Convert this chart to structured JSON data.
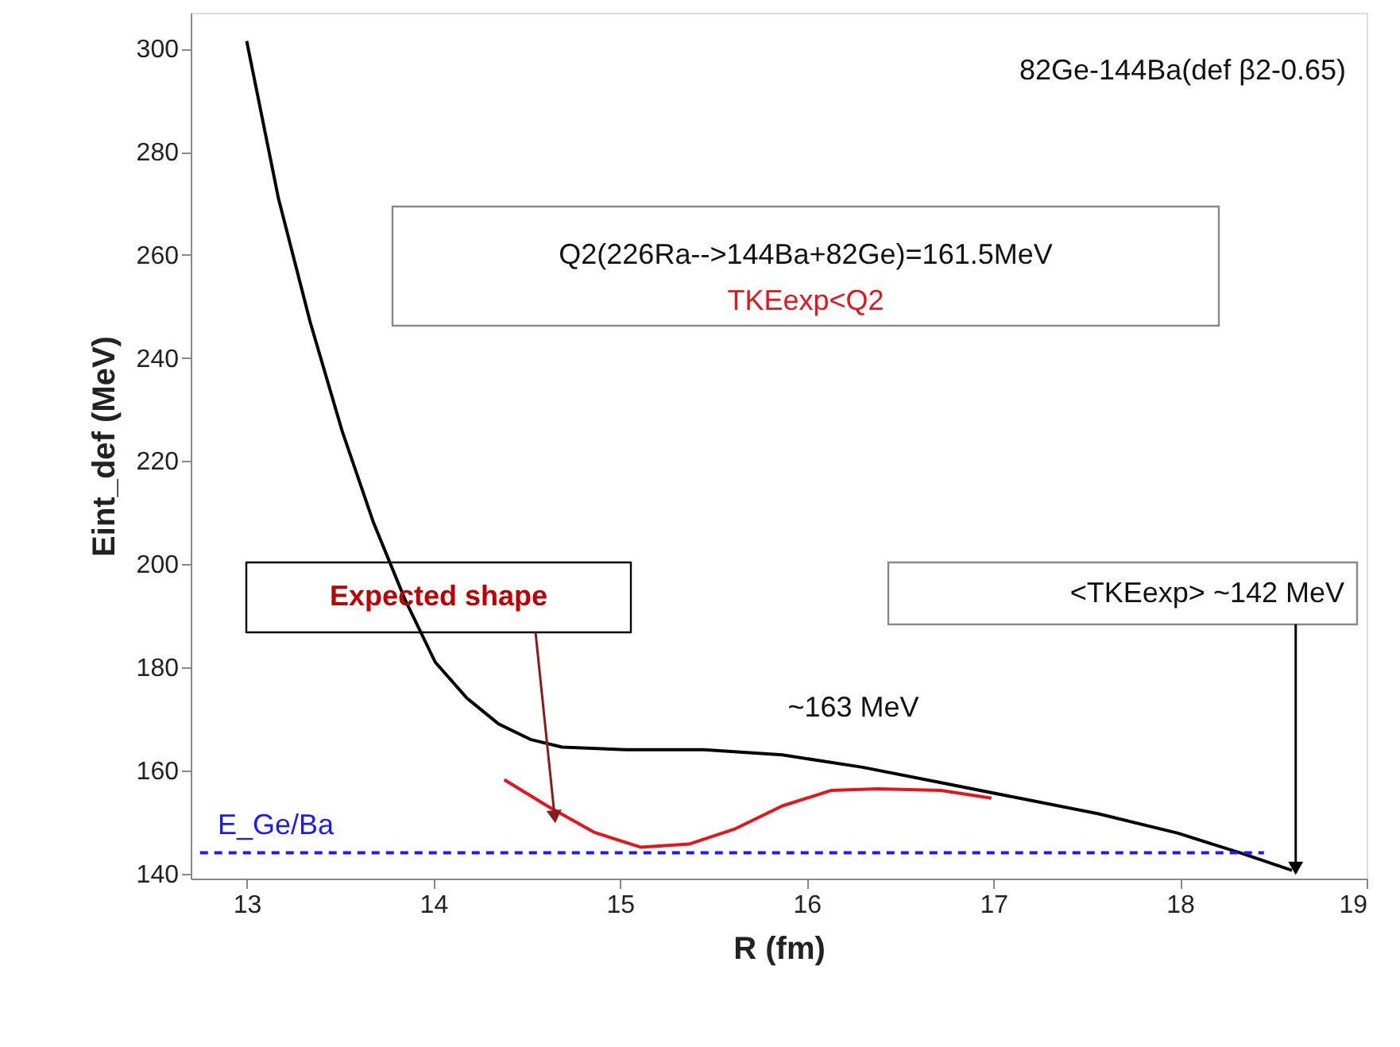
{
  "chart_data": {
    "type": "line",
    "xlabel": "R (fm)",
    "ylabel": "Eint_def (MeV)",
    "xlim": [
      12.7,
      19
    ],
    "ylim": [
      139,
      307
    ],
    "xticks": [
      13,
      14,
      15,
      16,
      17,
      18,
      19
    ],
    "yticks": [
      140,
      160,
      180,
      200,
      220,
      240,
      260,
      280,
      300
    ],
    "grid": false,
    "marker": "none",
    "series": [
      {
        "color": "#000000",
        "line_style": "solid",
        "x": [
          13,
          13.17,
          13.34,
          13.51,
          13.68,
          13.85,
          14.01,
          14.18,
          14.35,
          14.52,
          14.69,
          15.03,
          15.45,
          15.87,
          16.3,
          16.72,
          17.14,
          17.56,
          17.99,
          18.33,
          18.6
        ],
        "values": [
          301.5,
          271,
          247,
          226,
          208,
          193,
          181,
          174,
          169,
          166,
          164.5,
          164,
          164,
          163,
          160.6,
          157.6,
          154.6,
          151.6,
          147.8,
          143.9,
          140.6
        ]
      },
      {
        "color": "#e8141c",
        "line_style": "solid",
        "x": [
          14.38,
          14.61,
          14.86,
          15.11,
          15.37,
          15.62,
          15.87,
          16.13,
          16.38,
          16.72,
          16.99
        ],
        "values": [
          158.2,
          153.1,
          148,
          145.1,
          145.7,
          148.7,
          153.1,
          156.1,
          156.4,
          156.1,
          154.6
        ]
      },
      {
        "name": "E_Ge/Ba",
        "color": "#1a1aff",
        "line_style": "dashed",
        "x": [
          12.75,
          18.45
        ],
        "values": [
          144,
          144
        ]
      }
    ],
    "annotations": [
      "82Ge-144Ba(def β2-0.65)",
      "Q2(226Ra-->144Ba+82Ge)=161.5MeV",
      "TKEexp<Q2",
      "~163 MeV",
      {
        "text": "Expected shape",
        "x": 14.65,
        "y": 151
      },
      {
        "text": "<TKEexp> ~142 MeV",
        "x": 18.62,
        "y": 141
      }
    ]
  }
}
